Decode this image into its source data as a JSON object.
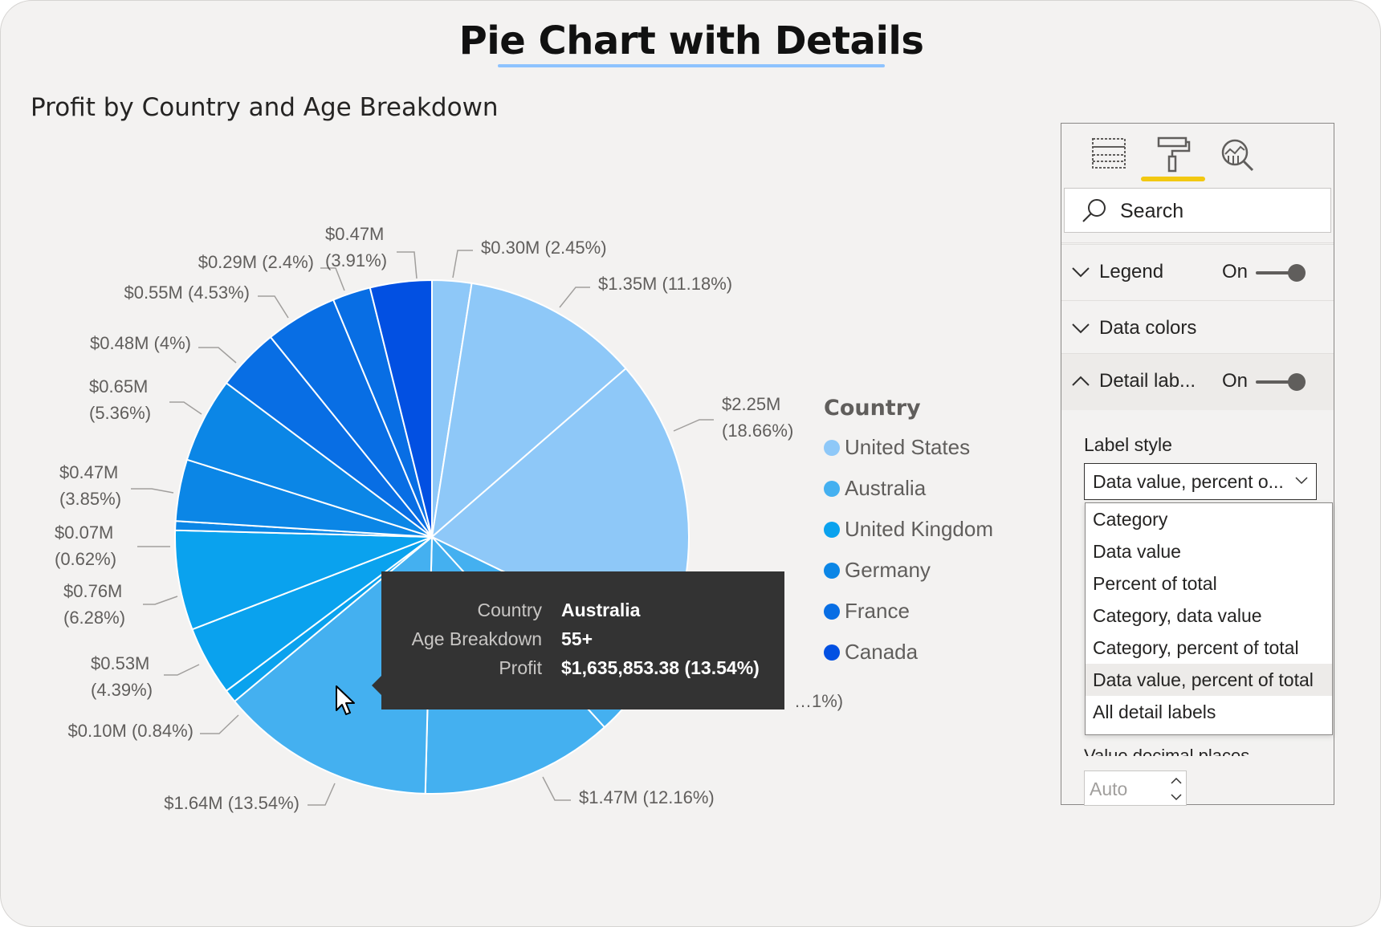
{
  "page": {
    "title": "Pie Chart with Details"
  },
  "chart_data": {
    "type": "pie",
    "title": "Profit by Country and Age Breakdown",
    "legend": {
      "title": "Country",
      "placement": "right",
      "items": [
        {
          "name": "United States",
          "color": "#8ec8f8"
        },
        {
          "name": "Australia",
          "color": "#44b0f0"
        },
        {
          "name": "United Kingdom",
          "color": "#0aa2ee"
        },
        {
          "name": "Germany",
          "color": "#0b86e6"
        },
        {
          "name": "France",
          "color": "#086ee4"
        },
        {
          "name": "Canada",
          "color": "#0250e2"
        }
      ]
    },
    "slices": [
      {
        "country": "United States",
        "value": 0.3,
        "label": "$0.30M (2.45%)"
      },
      {
        "country": "United States",
        "value": 1.35,
        "label": "$1.35M (11.18%)"
      },
      {
        "country": "United States",
        "value": 2.25,
        "label": "$2.25M (18.66%)"
      },
      {
        "country": "Australia",
        "value": 0.74,
        "label": "…1%)"
      },
      {
        "country": "Australia",
        "value": 1.47,
        "label": "$1.47M (12.16%)"
      },
      {
        "country": "Australia",
        "value": 1.64,
        "label": "$1.64M (13.54%)"
      },
      {
        "country": "United Kingdom",
        "value": 0.1,
        "label": "$0.10M (0.84%)"
      },
      {
        "country": "United Kingdom",
        "value": 0.53,
        "label": "$0.53M (4.39%)"
      },
      {
        "country": "United Kingdom",
        "value": 0.76,
        "label": "$0.76M (6.28%)"
      },
      {
        "country": "Germany",
        "value": 0.07,
        "label": "$0.07M (0.62%)"
      },
      {
        "country": "Germany",
        "value": 0.47,
        "label": "$0.47M (3.85%)"
      },
      {
        "country": "Germany",
        "value": 0.65,
        "label": "$0.65M (5.36%)"
      },
      {
        "country": "France",
        "value": 0.48,
        "label": "$0.48M (4%)"
      },
      {
        "country": "France",
        "value": 0.55,
        "label": "$0.55M (4.53%)"
      },
      {
        "country": "France",
        "value": 0.29,
        "label": "$0.29M (2.4%)"
      },
      {
        "country": "Canada",
        "value": 0.47,
        "label": "$0.47M (3.91%)"
      }
    ]
  },
  "tooltip": {
    "rows": [
      {
        "key": "Country",
        "value": "Australia"
      },
      {
        "key": "Age Breakdown",
        "value": "55+"
      },
      {
        "key": "Profit",
        "value": "$1,635,853.38 (13.54%)"
      }
    ]
  },
  "format_pane": {
    "search_placeholder": "Search",
    "sections": [
      {
        "label": "Legend",
        "toggle": "On",
        "expanded": false
      },
      {
        "label": "Data colors",
        "expanded": false
      },
      {
        "label": "Detail lab...",
        "toggle": "On",
        "expanded": true
      }
    ],
    "label_style": {
      "caption": "Label style",
      "selected": "Data value, percent o...",
      "options": [
        "Category",
        "Data value",
        "Percent of total",
        "Category, data value",
        "Category, percent of total",
        "Data value, percent of total",
        "All detail labels"
      ],
      "highlighted_option": "Data value, percent of total"
    },
    "decimal_places": {
      "caption": "Value decimal places",
      "placeholder": "Auto"
    }
  }
}
